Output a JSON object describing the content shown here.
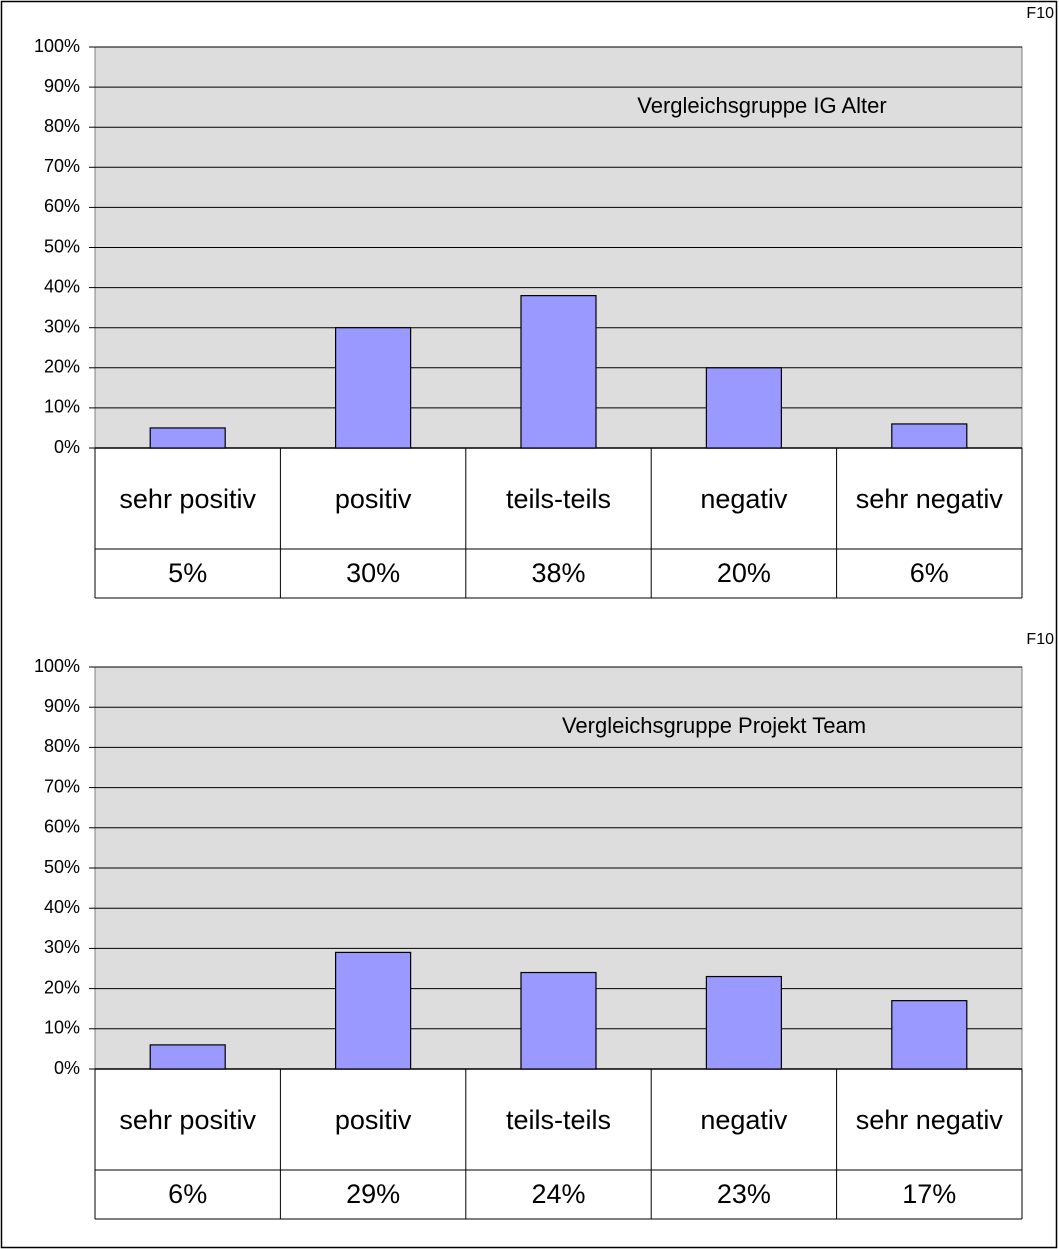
{
  "chart_data": [
    {
      "type": "bar",
      "corner_label": "F10",
      "annotation": "Vergleichsgruppe IG Alter",
      "categories": [
        "sehr positiv",
        "positiv",
        "teils-teils",
        "negativ",
        "sehr negativ"
      ],
      "values": [
        5,
        30,
        38,
        20,
        6
      ],
      "value_labels": [
        "5%",
        "30%",
        "38%",
        "20%",
        "6%"
      ],
      "color": "#9999ff",
      "plot_background": "#dddddd",
      "annotation_color": "#1f3f99",
      "ylim": [
        0,
        100
      ],
      "yticks": [
        {
          "value": 0,
          "label": "0%"
        },
        {
          "value": 10,
          "label": "10%"
        },
        {
          "value": 20,
          "label": "20%"
        },
        {
          "value": 30,
          "label": "30%"
        },
        {
          "value": 40,
          "label": "40%"
        },
        {
          "value": 50,
          "label": "50%"
        },
        {
          "value": 60,
          "label": "60%"
        },
        {
          "value": 70,
          "label": "70%"
        },
        {
          "value": 80,
          "label": "80%"
        },
        {
          "value": 90,
          "label": "90%"
        },
        {
          "value": 100,
          "label": "100%"
        }
      ],
      "grid": true
    },
    {
      "type": "bar",
      "corner_label": "F10",
      "annotation": "Vergleichsgruppe  Projekt Team",
      "categories": [
        "sehr positiv",
        "positiv",
        "teils-teils",
        "negativ",
        "sehr negativ"
      ],
      "values": [
        6,
        29,
        24,
        23,
        17
      ],
      "value_labels": [
        "6%",
        "29%",
        "24%",
        "23%",
        "17%"
      ],
      "color": "#9999ff",
      "plot_background": "#dddddd",
      "annotation_color": "#1f3f99",
      "ylim": [
        0,
        100
      ],
      "yticks": [
        {
          "value": 0,
          "label": "0%"
        },
        {
          "value": 10,
          "label": "10%"
        },
        {
          "value": 20,
          "label": "20%"
        },
        {
          "value": 30,
          "label": "30%"
        },
        {
          "value": 40,
          "label": "40%"
        },
        {
          "value": 50,
          "label": "50%"
        },
        {
          "value": 60,
          "label": "60%"
        },
        {
          "value": 70,
          "label": "70%"
        },
        {
          "value": 80,
          "label": "80%"
        },
        {
          "value": 90,
          "label": "90%"
        },
        {
          "value": 100,
          "label": "100%"
        }
      ],
      "grid": true
    }
  ]
}
